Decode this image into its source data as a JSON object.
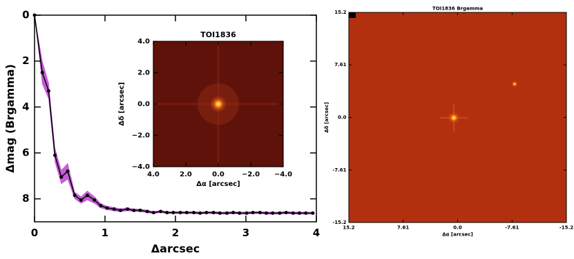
{
  "chart_data": [
    {
      "type": "line",
      "xlabel": "Δarcsec",
      "ylabel": "Δmag (Brgamma)",
      "x": [
        0,
        0.11,
        0.2,
        0.29,
        0.38,
        0.47,
        0.57,
        0.66,
        0.75,
        0.85,
        0.94,
        1.03,
        1.13,
        1.22,
        1.32,
        1.41,
        1.5,
        1.6,
        1.69,
        1.79,
        1.88,
        1.97,
        2.07,
        2.16,
        2.26,
        2.35,
        2.44,
        2.54,
        2.63,
        2.73,
        2.82,
        2.91,
        3.01,
        3.1,
        3.2,
        3.29,
        3.38,
        3.48,
        3.57,
        3.67,
        3.76,
        3.85,
        3.95
      ],
      "values": [
        0,
        2.5,
        3.3,
        6.1,
        7.05,
        6.8,
        7.85,
        8.05,
        7.85,
        8.05,
        8.3,
        8.4,
        8.45,
        8.5,
        8.45,
        8.5,
        8.5,
        8.55,
        8.6,
        8.55,
        8.6,
        8.6,
        8.6,
        8.6,
        8.6,
        8.62,
        8.6,
        8.6,
        8.62,
        8.62,
        8.6,
        8.62,
        8.62,
        8.6,
        8.6,
        8.62,
        8.62,
        8.62,
        8.6,
        8.62,
        8.62,
        8.62,
        8.62
      ],
      "errors": [
        0,
        0.5,
        0.35,
        0.3,
        0.3,
        0.35,
        0.15,
        0.15,
        0.2,
        0.15,
        0.1,
        0.08,
        0.08,
        0.07,
        0.07,
        0.06,
        0.06,
        0.06,
        0.05,
        0.05,
        0.05,
        0.05,
        0.05,
        0.05,
        0.05,
        0.05,
        0.05,
        0.05,
        0.05,
        0.05,
        0.05,
        0.05,
        0.05,
        0.05,
        0.05,
        0.05,
        0.05,
        0.05,
        0.05,
        0.05,
        0.05,
        0.05,
        0.05
      ],
      "color": "#000000",
      "band_color": "#c55fd6",
      "xlim": [
        0,
        4
      ],
      "xticks": [
        0,
        1,
        2,
        3,
        4
      ],
      "ylim": [
        9,
        0
      ],
      "yticks": [
        0,
        2,
        4,
        6,
        8
      ]
    },
    {
      "type": "image",
      "title": "TOI1836",
      "xlabel": "Δα [arcsec]",
      "ylabel": "Δδ [arcsec]",
      "xlim": [
        4,
        -4
      ],
      "xticks": [
        {
          "value": 4,
          "label": "4.0"
        },
        {
          "value": 2,
          "label": "2.0"
        },
        {
          "value": 0,
          "label": "0.0"
        },
        {
          "value": -2,
          "label": "−2.0"
        },
        {
          "value": -4,
          "label": "−4.0"
        }
      ],
      "ylim": [
        -4,
        4
      ],
      "yticks": [
        {
          "value": -4,
          "label": "−4.0"
        },
        {
          "value": -2,
          "label": "−2.0"
        },
        {
          "value": 0,
          "label": "0.0"
        },
        {
          "value": 2,
          "label": "2.0"
        },
        {
          "value": 4,
          "label": "4.0"
        }
      ]
    },
    {
      "type": "image",
      "title": "TOI1836 Brgamma",
      "xlabel": "Δα [arcsec]",
      "ylabel": "Δδ [arcsec]",
      "xlim": [
        15.2,
        -15.2
      ],
      "xticks": [
        15.2,
        7.61,
        {
          "value": 0,
          "label": "0.0"
        },
        -7.61,
        -15.2
      ],
      "ylim": [
        -15.2,
        15.2
      ],
      "yticks": [
        -15.2,
        -7.61,
        {
          "value": 0,
          "label": "0.0"
        },
        7.61,
        15.2
      ]
    }
  ]
}
